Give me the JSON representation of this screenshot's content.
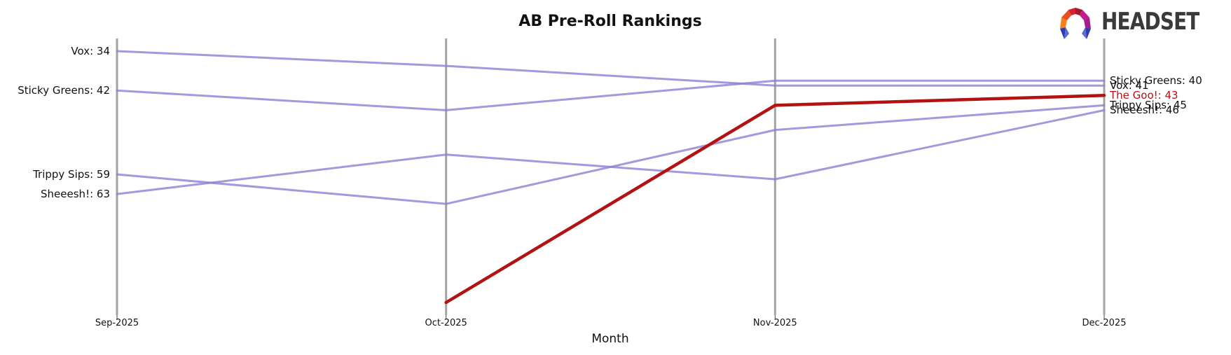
{
  "header": {
    "title": "AB Pre-Roll Rankings"
  },
  "logo": {
    "text": "HEADSET",
    "icon": "headset-faceted-arch-icon",
    "text_color": "#3a3a3a"
  },
  "colors": {
    "background": "#ffffff",
    "axis": "#a3a3a3",
    "tick": "#444444",
    "series_purple": "#8f7fd4",
    "series_red": "#b31212",
    "label_text": "#111111"
  },
  "chart_data": {
    "type": "line",
    "subtype": "bump-ranking",
    "title": "AB Pre-Roll Rankings",
    "xlabel": "Month",
    "ylabel": "",
    "x_categories": [
      "Sep-2025",
      "Oct-2025",
      "Nov-2025",
      "Dec-2025"
    ],
    "y_axis": {
      "inverted": true,
      "min": 31.45,
      "max": 87.55,
      "gridlines": false,
      "legend": "none"
    },
    "series": [
      {
        "name": "Vox",
        "values": [
          34,
          37,
          41,
          41
        ],
        "color": "#8f7fd4",
        "emphasis": false
      },
      {
        "name": "Sticky Greens",
        "values": [
          42,
          46,
          40,
          40
        ],
        "color": "#8f7fd4",
        "emphasis": false
      },
      {
        "name": "Trippy Sips",
        "values": [
          59,
          65,
          50,
          45
        ],
        "color": "#8f7fd4",
        "emphasis": false
      },
      {
        "name": "Sheeesh!",
        "values": [
          63,
          55,
          60,
          46
        ],
        "color": "#8f7fd4",
        "emphasis": false
      },
      {
        "name": "The Goo!",
        "values": [
          null,
          85,
          45,
          43
        ],
        "color": "#b31212",
        "emphasis": true
      }
    ],
    "left_edge_labels": [
      "Vox: 34",
      "Sticky Greens: 42",
      "Trippy Sips: 59",
      "Sheeesh!: 63"
    ],
    "right_edge_labels": [
      "Sticky Greens: 40",
      "Vox: 41",
      "The Goo!: 43",
      "Trippy Sips: 45",
      "Sheeesh!: 46"
    ]
  }
}
